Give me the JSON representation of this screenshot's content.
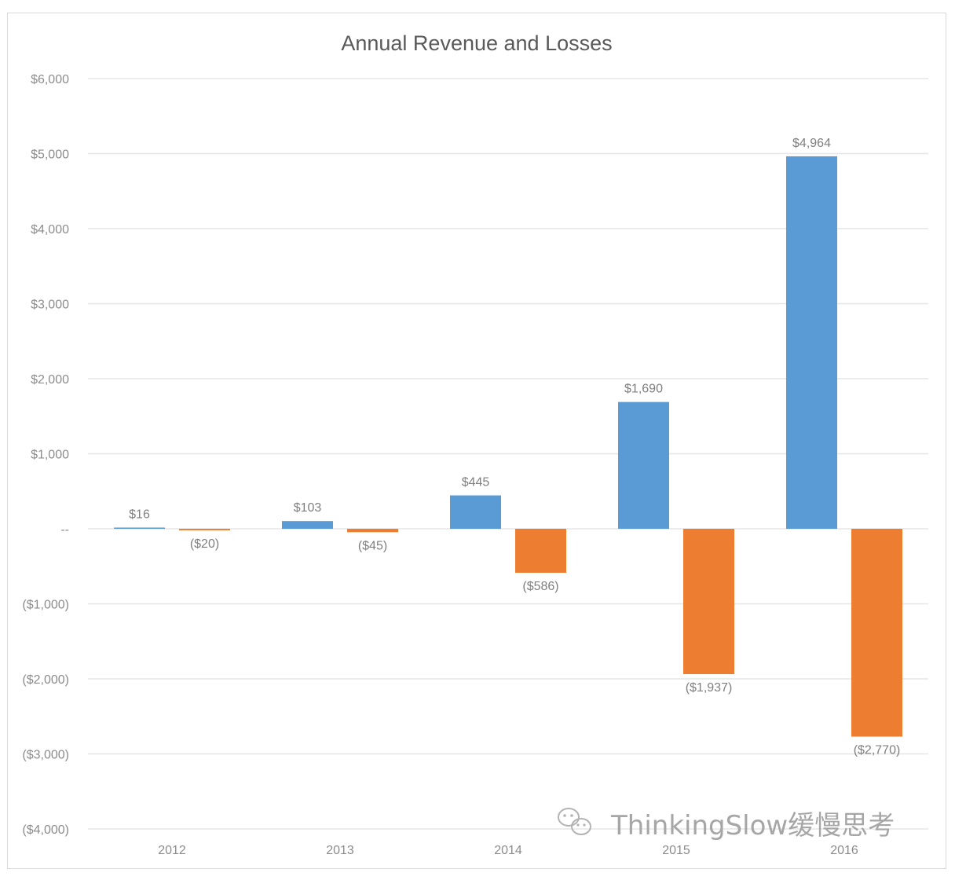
{
  "chart_data": {
    "type": "bar",
    "title": "Annual Revenue and Losses",
    "categories": [
      "2012",
      "2013",
      "2014",
      "2015",
      "2016"
    ],
    "series": [
      {
        "color": "#5b9bd5",
        "values": [
          16,
          103,
          445,
          1690,
          4964
        ],
        "labels": [
          "$16",
          "$103",
          "$445",
          "$1,690",
          "$4,964"
        ]
      },
      {
        "color": "#ed7d31",
        "values": [
          -20,
          -45,
          -586,
          -1937,
          -2770
        ],
        "labels": [
          "($20)",
          "($45)",
          "($586)",
          "($1,937)",
          "($2,770)"
        ]
      }
    ],
    "ylim": [
      -4000,
      6000
    ],
    "yticks": [
      6000,
      5000,
      4000,
      3000,
      2000,
      1000,
      0,
      -1000,
      -2000,
      -3000,
      -4000
    ],
    "ytick_labels": [
      "$6,000",
      "$5,000",
      "$4,000",
      "$3,000",
      "$2,000",
      "$1,000",
      "--",
      "($1,000)",
      "($2,000)",
      "($3,000)",
      "($4,000)"
    ],
    "grid": true,
    "legend": "none"
  },
  "watermark": {
    "text": "ThinkingSlow缓慢思考",
    "icon": "wechat-icon"
  }
}
